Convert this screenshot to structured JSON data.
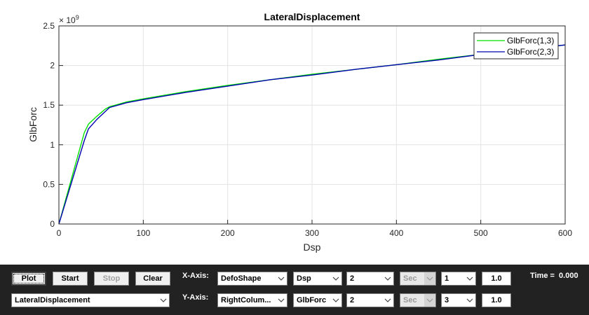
{
  "chart_data": {
    "type": "line",
    "title": "LateralDisplacement",
    "xlabel": "Dsp",
    "ylabel": "GlbForc",
    "y_exponent_label": "× 10",
    "y_exponent": "9",
    "xlim": [
      0,
      600
    ],
    "ylim": [
      0,
      2.5
    ],
    "xticks": [
      "0",
      "100",
      "200",
      "300",
      "400",
      "500",
      "600"
    ],
    "yticks": [
      "0",
      "0.5",
      "1",
      "1.5",
      "2",
      "2.5"
    ],
    "grid": true,
    "legend_position": "top-right",
    "series": [
      {
        "name": "GlbForc(1,3)",
        "color": "#00e000",
        "x": [
          0,
          30,
          35,
          45,
          55,
          60,
          80,
          100,
          150,
          200,
          250,
          300,
          350,
          400,
          450,
          500,
          550,
          600
        ],
        "y": [
          0,
          1.15,
          1.26,
          1.36,
          1.45,
          1.48,
          1.54,
          1.58,
          1.67,
          1.75,
          1.82,
          1.89,
          1.95,
          2.01,
          2.08,
          2.14,
          2.2,
          2.26
        ]
      },
      {
        "name": "GlbForc(2,3)",
        "color": "#0000b0",
        "x": [
          0,
          30,
          35,
          45,
          55,
          60,
          80,
          100,
          150,
          200,
          250,
          300,
          350,
          400,
          450,
          500,
          550,
          600
        ],
        "y": [
          0,
          1.05,
          1.2,
          1.32,
          1.42,
          1.47,
          1.53,
          1.57,
          1.66,
          1.74,
          1.82,
          1.88,
          1.95,
          2.01,
          2.07,
          2.14,
          2.2,
          2.26
        ]
      }
    ]
  },
  "controls": {
    "plot_label": "Plot",
    "start_label": "Start",
    "stop_label": "Stop",
    "clear_label": "Clear",
    "recorder_select": "LateralDisplacement",
    "x_axis_label": "X-Axis:",
    "y_axis_label": "Y-Axis:",
    "x_recorder": "DefoShape",
    "x_response": "Dsp",
    "x_component": "2",
    "x_time_unit": "Sec",
    "x_index": "1",
    "x_scale": "1.0",
    "y_recorder": "RightColum...",
    "y_response": "GlbForc",
    "y_component": "2",
    "y_time_unit": "Sec",
    "y_index": "3",
    "y_scale": "1.0",
    "time_label": "Time =",
    "time_value": "0.000"
  }
}
